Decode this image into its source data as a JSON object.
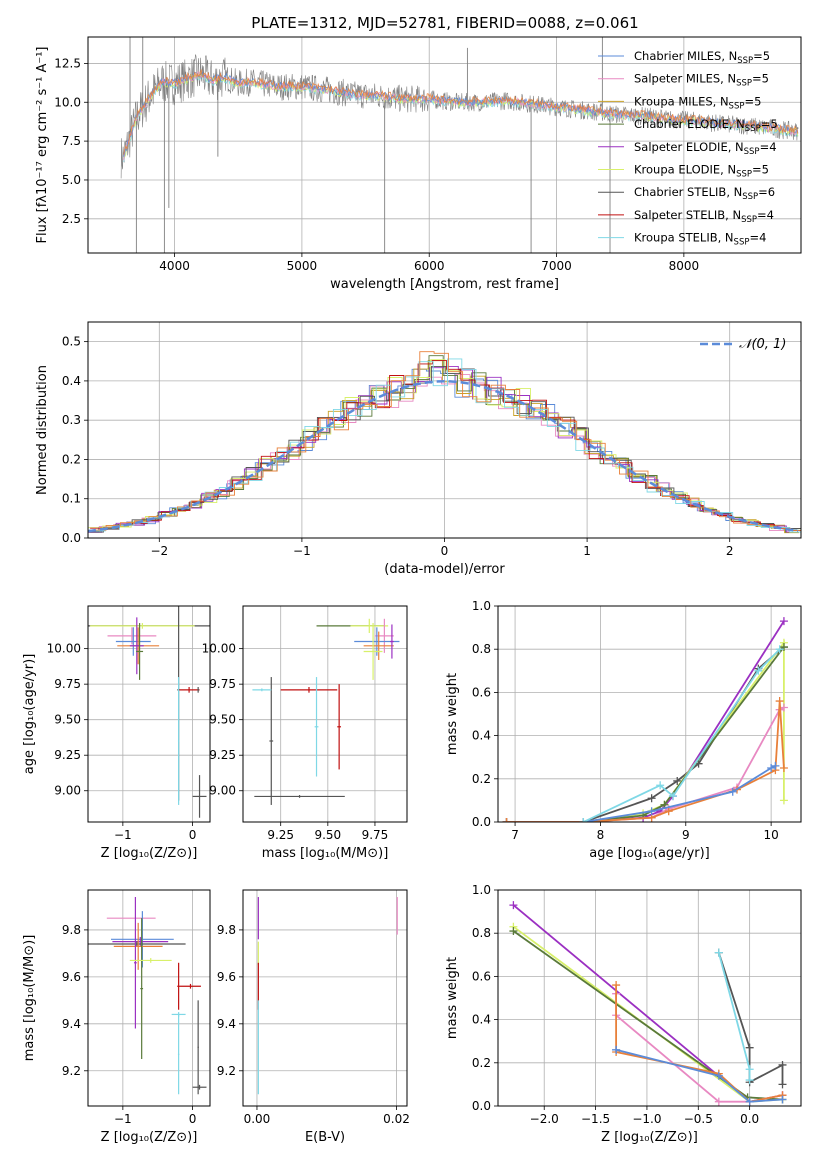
{
  "figure": {
    "title": "PLATE=1312, MJD=52781, FIBERID=0088, z=0.061"
  },
  "colors": {
    "chabrier_miles": "#5b8bd9",
    "salpeter_miles": "#e889c2",
    "kroupa_miles": "#c9a227",
    "chabrier_elodie": "#5a7a3a",
    "salpeter_elodie": "#9b30c2",
    "kroupa_elodie": "#d8f06a",
    "chabrier_stelib": "#555555",
    "salpeter_stelib": "#c01010",
    "kroupa_stelib": "#7fd8e6",
    "orange": "#e8803a",
    "data_gray": "#808080"
  },
  "chart_data": [
    {
      "id": "spectrum",
      "type": "line",
      "xlabel": "wavelength [Angstrom, rest frame]",
      "ylabel": "Flux [fλ10⁻¹⁷ erg cm⁻² s⁻¹ A⁻¹]",
      "xlim": [
        3320,
        8920
      ],
      "ylim": [
        0.3,
        14.2
      ],
      "xticks": [
        4000,
        5000,
        6000,
        7000,
        8000
      ],
      "yticks": [
        2.5,
        5.0,
        7.5,
        10.0,
        12.5
      ],
      "ytick_labels": [
        "2.5",
        "5.0",
        "7.5",
        "10.0",
        "12.5"
      ],
      "legend_position": "upper-right",
      "legend": [
        {
          "label": "Chabrier MILES, N",
          "sub": "SSP",
          "suffix": "=5",
          "color_key": "chabrier_miles"
        },
        {
          "label": "Salpeter MILES, N",
          "sub": "SSP",
          "suffix": "=5",
          "color_key": "salpeter_miles"
        },
        {
          "label": "Kroupa MILES, N",
          "sub": "SSP",
          "suffix": "=5",
          "color_key": "kroupa_miles"
        },
        {
          "label": "Chabrier ELODIE, N",
          "sub": "SSP",
          "suffix": "=5",
          "color_key": "chabrier_elodie"
        },
        {
          "label": "Salpeter ELODIE, N",
          "sub": "SSP",
          "suffix": "=4",
          "color_key": "salpeter_elodie"
        },
        {
          "label": "Kroupa ELODIE, N",
          "sub": "SSP",
          "suffix": "=5",
          "color_key": "kroupa_elodie"
        },
        {
          "label": "Chabrier STELIB, N",
          "sub": "SSP",
          "suffix": "=6",
          "color_key": "chabrier_stelib"
        },
        {
          "label": "Salpeter STELIB, N",
          "sub": "SSP",
          "suffix": "=4",
          "color_key": "salpeter_stelib"
        },
        {
          "label": "Kroupa STELIB, N",
          "sub": "SSP",
          "suffix": "=4",
          "color_key": "kroupa_stelib"
        }
      ],
      "continuum": {
        "x": [
          3600,
          3700,
          3800,
          3900,
          4000,
          4100,
          4200,
          4300,
          4400,
          4500,
          4600,
          4800,
          5000,
          5200,
          5400,
          5600,
          5800,
          6000,
          6200,
          6400,
          6600,
          6800,
          7000,
          7200,
          7400,
          7500,
          7700,
          7900,
          8100,
          8300,
          8500,
          8700,
          8900
        ],
        "y": [
          6.5,
          9.0,
          10.3,
          11.3,
          11.2,
          11.5,
          11.8,
          11.4,
          11.6,
          11.2,
          11.3,
          11.0,
          11.0,
          10.8,
          10.5,
          10.4,
          10.2,
          10.2,
          10.0,
          10.0,
          10.1,
          9.9,
          9.7,
          9.5,
          9.3,
          9.2,
          9.1,
          8.9,
          8.8,
          8.6,
          8.5,
          8.3,
          8.1
        ]
      },
      "spikes": [
        {
          "x": 3650,
          "y": 14.2
        },
        {
          "x": 3700,
          "y": 0.3
        },
        {
          "x": 3750,
          "y": 14.2
        },
        {
          "x": 3920,
          "y": 0.3
        },
        {
          "x": 3955,
          "y": 3.2
        },
        {
          "x": 4340,
          "y": 6.5
        },
        {
          "x": 5650,
          "y": 0.3
        },
        {
          "x": 6300,
          "y": 13.5
        },
        {
          "x": 6800,
          "y": 0.3
        },
        {
          "x": 7360,
          "y": 14.2
        },
        {
          "x": 7420,
          "y": 0.3
        }
      ]
    },
    {
      "id": "residuals",
      "type": "line",
      "xlabel": "(data-model)/error",
      "ylabel": "Normed distribution",
      "xlim": [
        -2.5,
        2.5
      ],
      "ylim": [
        0,
        0.55
      ],
      "xticks": [
        -2,
        -1,
        0,
        1,
        2
      ],
      "xtick_labels": [
        "−2",
        "−1",
        "0",
        "1",
        "2"
      ],
      "yticks": [
        0.0,
        0.1,
        0.2,
        0.3,
        0.4,
        0.5
      ],
      "ytick_labels": [
        "0.0",
        "0.1",
        "0.2",
        "0.3",
        "0.4",
        "0.5"
      ],
      "reference_curve": {
        "label": "𝒩(0, 1)",
        "mu": 0,
        "sigma": 1
      },
      "legend_position": "upper-right",
      "histogram_bin_width": 0.1
    },
    {
      "id": "age_vs_Z",
      "type": "scatter",
      "xlabel": "Z [log₁₀(Z/Z⊙)]",
      "ylabel": "age  [log₁₀(age/yr)]",
      "xlim": [
        -1.5,
        0.25
      ],
      "ylim": [
        8.78,
        10.3
      ],
      "xticks": [
        -1,
        0
      ],
      "xtick_labels": [
        "−1",
        "0"
      ],
      "yticks": [
        9.0,
        9.25,
        9.5,
        9.75,
        10.0
      ],
      "ytick_labels": [
        "9.00",
        "9.25",
        "9.50",
        "9.75",
        "10.00"
      ],
      "points": [
        {
          "x": -0.55,
          "y": 10.16,
          "xerr": 0.95,
          "yerr": 0.0,
          "color_key": "chabrier_stelib"
        },
        {
          "x": -0.72,
          "y": 10.16,
          "xerr": 0.75,
          "yerr": 0.02,
          "color_key": "kroupa_elodie"
        },
        {
          "x": -0.87,
          "y": 10.09,
          "xerr": 0.35,
          "yerr": 0.06,
          "color_key": "salpeter_miles"
        },
        {
          "x": -0.85,
          "y": 10.05,
          "xerr": 0.25,
          "yerr": 0.1,
          "color_key": "chabrier_miles"
        },
        {
          "x": -0.78,
          "y": 10.02,
          "xerr": 0.3,
          "yerr": 0.13,
          "color_key": "orange"
        },
        {
          "x": -0.8,
          "y": 10.02,
          "xerr": 0.1,
          "yerr": 0.2,
          "color_key": "salpeter_elodie"
        },
        {
          "x": -0.76,
          "y": 9.98,
          "xerr": 0.05,
          "yerr": 0.2,
          "color_key": "chabrier_elodie"
        },
        {
          "x": -0.2,
          "y": 9.71,
          "xerr": 0.02,
          "yerr": 0.78,
          "color_key": "chabrier_stelib"
        },
        {
          "x": -0.05,
          "y": 9.71,
          "xerr": 0.15,
          "yerr": 0.02,
          "color_key": "salpeter_stelib"
        },
        {
          "x": 0.08,
          "y": 9.71,
          "xerr": 0.01,
          "yerr": 0.02,
          "color_key": "chabrier_stelib"
        },
        {
          "x": 0.1,
          "y": 8.96,
          "xerr": 0.1,
          "yerr": 0.15,
          "color_key": "chabrier_stelib"
        },
        {
          "x": -0.2,
          "y": 9.35,
          "xerr": 0.01,
          "yerr": 0.45,
          "color_key": "kroupa_stelib"
        }
      ]
    },
    {
      "id": "age_vs_mass",
      "type": "scatter",
      "xlabel": "mass [log₁₀(M/M⊙)]",
      "xlim": [
        9.05,
        9.92
      ],
      "ylim": [
        8.78,
        10.3
      ],
      "xticks": [
        9.25,
        9.5,
        9.75
      ],
      "xtick_labels": [
        "9.25",
        "9.50",
        "9.75"
      ],
      "yticks": [
        9.0,
        9.25,
        9.5,
        9.75,
        10.0
      ],
      "ytick_labels": [
        "9.00",
        "9.25",
        "9.50",
        "9.75",
        "10.00"
      ],
      "points": [
        {
          "x": 9.62,
          "y": 10.16,
          "xerr": 0.18,
          "yerr": 0.0,
          "color_key": "chabrier_elodie"
        },
        {
          "x": 9.72,
          "y": 10.16,
          "xerr": 0.1,
          "yerr": 0.05,
          "color_key": "kroupa_elodie"
        },
        {
          "x": 9.8,
          "y": 10.09,
          "xerr": 0.05,
          "yerr": 0.12,
          "color_key": "salpeter_miles"
        },
        {
          "x": 9.76,
          "y": 10.05,
          "xerr": 0.12,
          "yerr": 0.1,
          "color_key": "chabrier_miles"
        },
        {
          "x": 9.77,
          "y": 10.02,
          "xerr": 0.08,
          "yerr": 0.1,
          "color_key": "orange"
        },
        {
          "x": 9.74,
          "y": 9.98,
          "xerr": 0.05,
          "yerr": 0.2,
          "color_key": "kroupa_elodie"
        },
        {
          "x": 9.84,
          "y": 10.05,
          "xerr": 0.01,
          "yerr": 0.12,
          "color_key": "salpeter_elodie"
        },
        {
          "x": 9.4,
          "y": 9.71,
          "xerr": 0.15,
          "yerr": 0.02,
          "color_key": "salpeter_stelib"
        },
        {
          "x": 9.56,
          "y": 9.45,
          "xerr": 0.01,
          "yerr": 0.3,
          "color_key": "salpeter_stelib"
        },
        {
          "x": 9.44,
          "y": 9.45,
          "xerr": 0.01,
          "yerr": 0.35,
          "color_key": "kroupa_stelib"
        },
        {
          "x": 9.2,
          "y": 9.35,
          "xerr": 0.01,
          "yerr": 0.45,
          "color_key": "chabrier_stelib"
        },
        {
          "x": 9.15,
          "y": 9.71,
          "xerr": 0.05,
          "yerr": 0.01,
          "color_key": "kroupa_stelib"
        },
        {
          "x": 9.35,
          "y": 8.96,
          "xerr": 0.24,
          "yerr": 0.01,
          "color_key": "chabrier_stelib"
        }
      ]
    },
    {
      "id": "weight_vs_age",
      "type": "line",
      "xlabel": "age  [log₁₀(age/yr)]",
      "ylabel": "mass weight",
      "xlim": [
        6.8,
        10.35
      ],
      "ylim": [
        0,
        1.0
      ],
      "xticks": [
        7,
        8,
        9,
        10
      ],
      "yticks": [
        0.0,
        0.2,
        0.4,
        0.6,
        0.8,
        1.0
      ],
      "ytick_labels": [
        "0.0",
        "0.2",
        "0.4",
        "0.6",
        "0.8",
        "1.0"
      ],
      "series": [
        {
          "color_key": "chabrier_stelib",
          "x": [
            6.9,
            7.8,
            8.6,
            8.9,
            9.15,
            9.85,
            10.15
          ],
          "y": [
            0.0,
            0.0,
            0.11,
            0.19,
            0.27,
            0.71,
            0.81
          ]
        },
        {
          "color_key": "salpeter_elodie",
          "x": [
            6.9,
            7.8,
            8.5,
            8.7,
            8.85,
            10.15
          ],
          "y": [
            0.0,
            0.0,
            0.02,
            0.05,
            0.12,
            0.93
          ]
        },
        {
          "color_key": "kroupa_elodie",
          "x": [
            6.9,
            7.8,
            8.5,
            8.75,
            10.15,
            10.15
          ],
          "y": [
            0.0,
            0.0,
            0.04,
            0.08,
            0.83,
            0.1
          ]
        },
        {
          "color_key": "chabrier_elodie",
          "x": [
            6.9,
            7.8,
            8.5,
            8.75,
            10.15
          ],
          "y": [
            0.0,
            0.0,
            0.03,
            0.08,
            0.81
          ]
        },
        {
          "color_key": "salpeter_miles",
          "x": [
            6.9,
            7.8,
            8.6,
            8.8,
            9.6,
            10.1,
            10.15
          ],
          "y": [
            0.0,
            0.0,
            0.02,
            0.06,
            0.16,
            0.52,
            0.53
          ]
        },
        {
          "color_key": "orange",
          "x": [
            6.9,
            7.8,
            8.6,
            8.8,
            9.6,
            10.05,
            10.1,
            10.15
          ],
          "y": [
            0.0,
            0.0,
            0.02,
            0.05,
            0.15,
            0.24,
            0.56,
            0.25
          ]
        },
        {
          "color_key": "chabrier_miles",
          "x": [
            7.8,
            8.6,
            9.55,
            10.0,
            10.05
          ],
          "y": [
            0.0,
            0.05,
            0.14,
            0.25,
            0.26
          ]
        },
        {
          "color_key": "kroupa_stelib",
          "x": [
            7.8,
            8.7,
            8.85,
            9.85,
            10.1
          ],
          "y": [
            0.0,
            0.17,
            0.12,
            0.7,
            0.8
          ]
        }
      ]
    },
    {
      "id": "mass_vs_Z",
      "type": "scatter",
      "xlabel": "Z [log₁₀(Z/Z⊙)]",
      "ylabel": "mass [log₁₀(M/M⊙)]",
      "xlim": [
        -1.5,
        0.25
      ],
      "ylim": [
        9.05,
        9.97
      ],
      "xticks": [
        -1,
        0
      ],
      "xtick_labels": [
        "−1",
        "0"
      ],
      "yticks": [
        9.2,
        9.4,
        9.6,
        9.8
      ],
      "ytick_labels": [
        "9.2",
        "9.4",
        "9.6",
        "9.8"
      ],
      "points": [
        {
          "x": -0.88,
          "y": 9.85,
          "xerr": 0.35,
          "yerr": 0.0,
          "color_key": "salpeter_miles"
        },
        {
          "x": -0.72,
          "y": 9.76,
          "xerr": 0.45,
          "yerr": 0.12,
          "color_key": "chabrier_miles"
        },
        {
          "x": -0.75,
          "y": 9.75,
          "xerr": 0.4,
          "yerr": 0.02,
          "color_key": "salpeter_elodie"
        },
        {
          "x": -0.8,
          "y": 9.74,
          "xerr": 0.7,
          "yerr": 0.01,
          "color_key": "chabrier_stelib"
        },
        {
          "x": -0.78,
          "y": 9.73,
          "xerr": 0.35,
          "yerr": 0.1,
          "color_key": "orange"
        },
        {
          "x": -0.82,
          "y": 9.66,
          "xerr": 0.02,
          "yerr": 0.28,
          "color_key": "salpeter_elodie"
        },
        {
          "x": -0.73,
          "y": 9.55,
          "xerr": 0.02,
          "yerr": 0.3,
          "color_key": "chabrier_elodie"
        },
        {
          "x": -0.6,
          "y": 9.67,
          "xerr": 0.3,
          "yerr": 0.01,
          "color_key": "kroupa_elodie"
        },
        {
          "x": -0.2,
          "y": 9.56,
          "xerr": 0.02,
          "yerr": 0.1,
          "color_key": "salpeter_stelib"
        },
        {
          "x": -0.03,
          "y": 9.56,
          "xerr": 0.15,
          "yerr": 0.01,
          "color_key": "salpeter_stelib"
        },
        {
          "x": -0.2,
          "y": 9.44,
          "xerr": 0.1,
          "yerr": 0.01,
          "color_key": "kroupa_stelib"
        },
        {
          "x": -0.2,
          "y": 9.27,
          "xerr": 0.01,
          "yerr": 0.17,
          "color_key": "kroupa_stelib"
        },
        {
          "x": 0.08,
          "y": 9.3,
          "xerr": 0.01,
          "yerr": 0.2,
          "color_key": "chabrier_stelib"
        },
        {
          "x": 0.1,
          "y": 9.13,
          "xerr": 0.1,
          "yerr": 0.01,
          "color_key": "chabrier_stelib"
        }
      ]
    },
    {
      "id": "mass_vs_ebv",
      "type": "scatter",
      "xlabel": "E(B-V)",
      "xlim": [
        -0.002,
        0.0215
      ],
      "ylim": [
        9.05,
        9.97
      ],
      "xticks": [
        0.0,
        0.02
      ],
      "xtick_labels": [
        "0.00",
        "0.02"
      ],
      "yticks": [
        9.2,
        9.4,
        9.6,
        9.8
      ],
      "ytick_labels": [
        "9.2",
        "9.4",
        "9.6",
        "9.8"
      ],
      "points": [
        {
          "x": 0.0002,
          "y": 9.85,
          "xerr": 0.0,
          "yerr": 0.09,
          "color_key": "salpeter_elodie"
        },
        {
          "x": 0.0002,
          "y": 9.7,
          "xerr": 0.0,
          "yerr": 0.05,
          "color_key": "kroupa_elodie"
        },
        {
          "x": 0.0002,
          "y": 9.56,
          "xerr": 0.0,
          "yerr": 0.1,
          "color_key": "salpeter_stelib"
        },
        {
          "x": 0.0002,
          "y": 9.3,
          "xerr": 0.0,
          "yerr": 0.2,
          "color_key": "kroupa_stelib"
        },
        {
          "x": 0.0201,
          "y": 9.86,
          "xerr": 0.0,
          "yerr": 0.08,
          "color_key": "salpeter_miles"
        }
      ]
    },
    {
      "id": "weight_vs_Z",
      "type": "line",
      "xlabel": "Z [log₁₀(Z/Z⊙)]",
      "ylabel": "mass weight",
      "xlim": [
        -2.45,
        0.5
      ],
      "ylim": [
        0,
        1.0
      ],
      "xticks": [
        -2.0,
        -1.5,
        -1.0,
        -0.5,
        0.0
      ],
      "xtick_labels": [
        "−2.0",
        "−1.5",
        "−1.0",
        "−0.5",
        "0.0"
      ],
      "yticks": [
        0.0,
        0.2,
        0.4,
        0.6,
        0.8,
        1.0
      ],
      "ytick_labels": [
        "0.0",
        "0.2",
        "0.4",
        "0.6",
        "0.8",
        "1.0"
      ],
      "series": [
        {
          "color_key": "salpeter_elodie",
          "x": [
            -2.3,
            0.0,
            0.32
          ],
          "y": [
            0.93,
            0.02,
            0.05
          ]
        },
        {
          "color_key": "kroupa_elodie",
          "x": [
            -2.3,
            0.0,
            0.32
          ],
          "y": [
            0.83,
            0.02,
            0.03
          ]
        },
        {
          "color_key": "chabrier_elodie",
          "x": [
            -2.3,
            -0.02,
            0.32
          ],
          "y": [
            0.81,
            0.04,
            0.03
          ]
        },
        {
          "color_key": "salpeter_miles",
          "x": [
            -1.3,
            -1.3,
            -0.3,
            0.0,
            0.32
          ],
          "y": [
            0.52,
            0.42,
            0.02,
            0.02,
            0.05
          ]
        },
        {
          "color_key": "orange",
          "x": [
            -1.3,
            -1.3,
            -0.3,
            0.0,
            0.32
          ],
          "y": [
            0.56,
            0.25,
            0.15,
            0.02,
            0.05
          ]
        },
        {
          "color_key": "chabrier_miles",
          "x": [
            -1.3,
            -1.3,
            -0.3,
            0.0,
            0.32
          ],
          "y": [
            0.26,
            0.26,
            0.14,
            0.02,
            0.03
          ]
        },
        {
          "color_key": "chabrier_stelib",
          "x": [
            -0.3,
            0.0,
            0.0,
            0.32,
            0.32
          ],
          "y": [
            0.71,
            0.27,
            0.11,
            0.19,
            0.1
          ]
        },
        {
          "color_key": "kroupa_stelib",
          "x": [
            -0.3,
            0.0,
            0.0
          ],
          "y": [
            0.71,
            0.17,
            0.12
          ]
        }
      ]
    }
  ]
}
